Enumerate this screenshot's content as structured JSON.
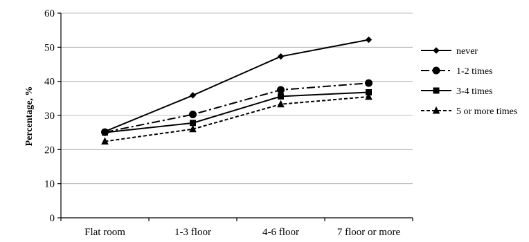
{
  "chart_data": {
    "type": "line",
    "categories": [
      "Flat room",
      "1-3 floor",
      "4-6 floor",
      "7 floor or more"
    ],
    "series": [
      {
        "name": "never",
        "values": [
          25.3,
          35.9,
          47.3,
          52.2
        ],
        "marker": "diamond",
        "dash": "solid",
        "color": "#000000"
      },
      {
        "name": "1-2 times",
        "values": [
          25.1,
          30.3,
          37.5,
          39.5
        ],
        "marker": "circle",
        "dash": "dashdot",
        "color": "#000000"
      },
      {
        "name": "3-4 times",
        "values": [
          25.0,
          27.8,
          35.6,
          36.8
        ],
        "marker": "square",
        "dash": "solid",
        "color": "#000000"
      },
      {
        "name": "5 or more times",
        "values": [
          22.4,
          26.0,
          33.3,
          35.5
        ],
        "marker": "triangle",
        "dash": "dashed",
        "color": "#000000"
      }
    ],
    "xlabel": "",
    "ylabel": "Percentage, %",
    "ylim": [
      0,
      60
    ],
    "yticks": [
      0,
      10,
      20,
      30,
      40,
      50,
      60
    ],
    "grid": true,
    "legend_position": "right"
  }
}
